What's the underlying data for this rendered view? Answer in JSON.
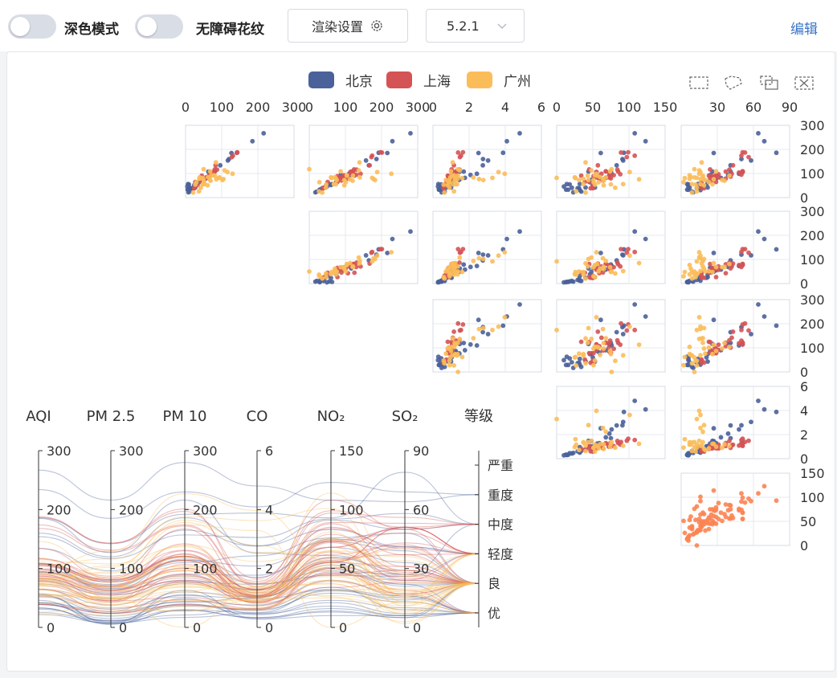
{
  "topbar": {
    "dark_mode_label": "深色模式",
    "pattern_label": "无障碍花纹",
    "render_settings_label": "渲染设置",
    "version_value": "5.2.1",
    "edit_label": "编辑"
  },
  "legend": {
    "items": [
      {
        "name": "北京",
        "color": "#4a6199"
      },
      {
        "name": "上海",
        "color": "#d45355"
      },
      {
        "name": "广州",
        "color": "#fbbd5a"
      }
    ]
  },
  "toolbox": {
    "icons": [
      "select-rect-icon",
      "select-lasso-icon",
      "keep-selection-icon",
      "clear-selection-icon"
    ]
  },
  "chart_data": {
    "type": "scatter",
    "scatter_matrix": {
      "dimensions": [
        "AQI",
        "PM2.5",
        "PM10",
        "CO",
        "NO2",
        "SO2"
      ],
      "top_axis_ticks": [
        [
          "0",
          "100",
          "200",
          "300"
        ],
        [
          "0",
          "100",
          "200",
          "300"
        ],
        [
          "0",
          "2",
          "4",
          "6"
        ],
        [
          "0",
          "50",
          "100",
          "150"
        ],
        [
          "",
          "30",
          "60",
          "90"
        ]
      ],
      "right_axis_ticks": [
        [
          "0",
          "100",
          "200",
          "300"
        ],
        [
          "0",
          "100",
          "200",
          "300"
        ],
        [
          "0",
          "100",
          "200",
          "300"
        ],
        [
          "0",
          "2",
          "4",
          "6"
        ],
        [
          "0",
          "50",
          "100",
          "150"
        ]
      ],
      "series": [
        {
          "name": "北京",
          "color": "#4a6199",
          "points": [
            [
              55,
              9,
              56,
              0.46,
              18,
              6
            ],
            [
              25,
              11,
              21,
              0.65,
              34,
              9
            ],
            [
              56,
              7,
              63,
              0.3,
              14,
              5
            ],
            [
              33,
              7,
              29,
              0.33,
              16,
              6
            ],
            [
              42,
              24,
              44,
              0.76,
              40,
              16
            ],
            [
              82,
              58,
              90,
              1.77,
              68,
              33
            ],
            [
              74,
              49,
              77,
              1.46,
              48,
              27
            ],
            [
              78,
              55,
              80,
              1.29,
              59,
              29
            ],
            [
              267,
              216,
              280,
              4.8,
              108,
              64
            ],
            [
              185,
              127,
              216,
              2.52,
              61,
              27
            ],
            [
              39,
              19,
              38,
              0.57,
              31,
              15
            ],
            [
              41,
              11,
              40,
              0.43,
              21,
              7
            ],
            [
              64,
              38,
              74,
              1.04,
              46,
              22
            ],
            [
              108,
              79,
              120,
              1.7,
              75,
              41
            ],
            [
              108,
              63,
              116,
              1.48,
              44,
              26
            ],
            [
              33,
              6,
              29,
              0.34,
              13,
              5
            ],
            [
              94,
              66,
              87,
              1.26,
              56,
              24
            ],
            [
              186,
              142,
              192,
              3.88,
              93,
              79
            ],
            [
              57,
              31,
              54,
              0.96,
              32,
              14
            ],
            [
              22,
              8,
              17,
              0.48,
              23,
              10
            ],
            [
              39,
              15,
              36,
              0.61,
              29,
              13
            ],
            [
              94,
              69,
              114,
              2.08,
              73,
              39
            ],
            [
              99,
              73,
              110,
              2.43,
              76,
              48
            ],
            [
              31,
              12,
              30,
              0.5,
              32,
              16
            ],
            [
              42,
              27,
              43,
              1,
              53,
              22
            ],
            [
              154,
              117,
              157,
              3.05,
              92,
              58
            ],
            [
              234,
              185,
              230,
              4.09,
              123,
              69
            ],
            [
              160,
              120,
              186,
              2.77,
              91,
              50
            ],
            [
              134,
              96,
              165,
              2.76,
              83,
              41
            ],
            [
              52,
              24,
              60,
              1.03,
              50,
              21
            ],
            [
              46,
              5,
              49,
              0.28,
              10,
              6
            ]
          ]
        },
        {
          "name": "上海",
          "color": "#d45355",
          "points": [
            [
              91,
              45,
              125,
              0.82,
              34,
              23
            ],
            [
              65,
              27,
              78,
              0.86,
              45,
              29
            ],
            [
              83,
              60,
              84,
              1.09,
              73,
              27
            ],
            [
              109,
              81,
              121,
              1.28,
              68,
              51
            ],
            [
              106,
              77,
              114,
              1.07,
              55,
              51
            ],
            [
              109,
              81,
              121,
              1.28,
              68,
              51
            ],
            [
              106,
              77,
              114,
              1.07,
              55,
              51
            ],
            [
              89,
              65,
              78,
              0.86,
              51,
              26
            ],
            [
              53,
              33,
              47,
              0.64,
              50,
              17
            ],
            [
              80,
              55,
              80,
              1.01,
              75,
              24
            ],
            [
              117,
              81,
              124,
              1.03,
              45,
              24
            ],
            [
              99,
              71,
              142,
              1.1,
              62,
              42
            ],
            [
              95,
              69,
              130,
              1.28,
              74,
              50
            ],
            [
              116,
              87,
              131,
              1.47,
              84,
              40
            ],
            [
              108,
              80,
              121,
              1.3,
              85,
              37
            ],
            [
              134,
              83,
              167,
              1.16,
              57,
              43
            ],
            [
              79,
              43,
              107,
              1.05,
              59,
              37
            ],
            [
              71,
              46,
              89,
              0.86,
              64,
              25
            ],
            [
              97,
              71,
              113,
              1.17,
              88,
              31
            ],
            [
              84,
              57,
              91,
              0.85,
              55,
              31
            ],
            [
              87,
              63,
              101,
              0.9,
              56,
              41
            ],
            [
              104,
              77,
              119,
              1.09,
              73,
              48
            ],
            [
              87,
              62,
              100,
              1,
              72,
              28
            ],
            [
              168,
              128,
              172,
              1.49,
              97,
              56
            ],
            [
              65,
              45,
              51,
              0.74,
              39,
              17
            ],
            [
              39,
              24,
              38,
              0.61,
              47,
              17
            ],
            [
              39,
              24,
              39,
              0.59,
              50,
              19
            ],
            [
              93,
              68,
              96,
              1.05,
              79,
              29
            ],
            [
              188,
              143,
              197,
              1.66,
              99,
              51
            ],
            [
              174,
              131,
              174,
              1.55,
              108,
              50
            ],
            [
              187,
              143,
              201,
              1.39,
              89,
              53
            ]
          ]
        },
        {
          "name": "广州",
          "color": "#fbbd5a",
          "points": [
            [
              26,
              37,
              27,
              1.163,
              27,
              13
            ],
            [
              85,
              62,
              71,
              1.195,
              60,
              8
            ],
            [
              78,
              38,
              74,
              1.363,
              37,
              7
            ],
            [
              21,
              21,
              36,
              0.634,
              40,
              9
            ],
            [
              41,
              42,
              46,
              0.915,
              81,
              13
            ],
            [
              56,
              52,
              69,
              1.067,
              92,
              16
            ],
            [
              64,
              30,
              28,
              0.924,
              51,
              2
            ],
            [
              55,
              48,
              74,
              1.236,
              75,
              26
            ],
            [
              76,
              85,
              113,
              1.237,
              114,
              27
            ],
            [
              91,
              81,
              104,
              1.041,
              56,
              40
            ],
            [
              84,
              39,
              60,
              0.964,
              25,
              11
            ],
            [
              64,
              51,
              101,
              0.862,
              58,
              23
            ],
            [
              70,
              69,
              120,
              1.198,
              65,
              36
            ],
            [
              77,
              105,
              178,
              2.549,
              64,
              16
            ],
            [
              109,
              68,
              87,
              0.996,
              74,
              29
            ],
            [
              73,
              68,
              97,
              0.905,
              51,
              34
            ],
            [
              54,
              27,
              47,
              0.592,
              53,
              12
            ],
            [
              51,
              61,
              97,
              0.811,
              65,
              19
            ],
            [
              91,
              71,
              121,
              1.374,
              43,
              18
            ],
            [
              73,
              102,
              182,
              2.787,
              44,
              19
            ],
            [
              73,
              50,
              76,
              0.717,
              31,
              20
            ],
            [
              84,
              94,
              140,
              2.238,
              68,
              18
            ],
            [
              93,
              77,
              104,
              1.165,
              53,
              7
            ],
            [
              99,
              130,
              227,
              3.97,
              55,
              15
            ],
            [
              146,
              84,
              139,
              1.094,
              40,
              17
            ],
            [
              113,
              108,
              137,
              1.481,
              48,
              15
            ],
            [
              81,
              48,
              62,
              1.619,
              26,
              3
            ],
            [
              56,
              48,
              68,
              1.336,
              37,
              9
            ],
            [
              82,
              92,
              174,
              3.29,
              0,
              13
            ],
            [
              106,
              116,
              188,
              3.628,
              101,
              16
            ],
            [
              118,
              50,
              0,
              1.383,
              76,
              11
            ]
          ]
        }
      ],
      "diagonal_color": "#fc8452"
    },
    "parallel_axes": [
      {
        "name": "AQI",
        "ticks": [
          "0",
          "100",
          "200",
          "300"
        ]
      },
      {
        "name": "PM 2.5",
        "ticks": [
          "0",
          "100",
          "200",
          "300"
        ]
      },
      {
        "name": "PM 10",
        "ticks": [
          "0",
          "100",
          "200",
          "300"
        ]
      },
      {
        "name": "CO",
        "ticks": [
          "0",
          "2",
          "4",
          "6"
        ]
      },
      {
        "name": "NO₂",
        "ticks": [
          "0",
          "50",
          "100",
          "150"
        ]
      },
      {
        "name": "SO₂",
        "ticks": [
          "0",
          "30",
          "60",
          "90"
        ]
      },
      {
        "name": "等级",
        "ticks": [
          "优",
          "良",
          "轻度",
          "中度",
          "重度",
          "严重"
        ]
      }
    ]
  }
}
